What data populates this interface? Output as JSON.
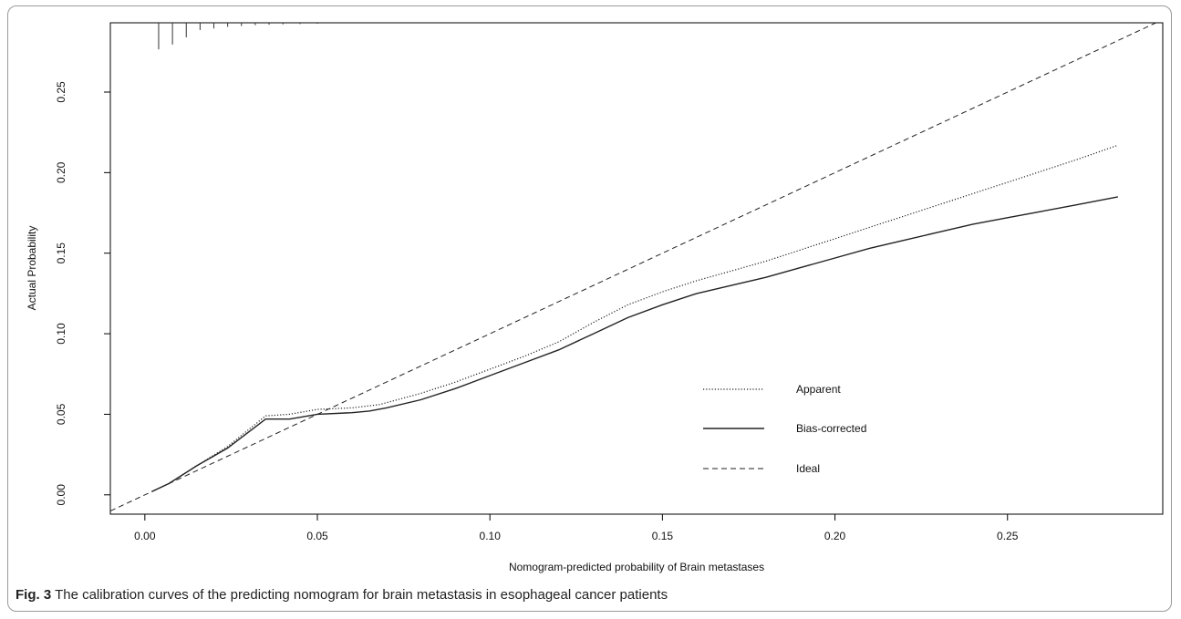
{
  "caption": {
    "label": "Fig. 3",
    "text": " The calibration curves of the predicting nomogram for brain metastasis in esophageal cancer patients"
  },
  "chart_data": {
    "type": "line",
    "title": "",
    "xlabel": "Nomogram-predicted probability of Brain metastases",
    "ylabel": "Actual Probability",
    "xlim": [
      -0.01,
      0.295
    ],
    "ylim": [
      -0.012,
      0.293
    ],
    "xticks": [
      0.0,
      0.05,
      0.1,
      0.15,
      0.2,
      0.25
    ],
    "xtick_labels": [
      "0.00",
      "0.05",
      "0.10",
      "0.15",
      "0.20",
      "0.25"
    ],
    "yticks": [
      0.0,
      0.05,
      0.1,
      0.15,
      0.2,
      0.25
    ],
    "ytick_labels": [
      "0.00",
      "0.05",
      "0.10",
      "0.15",
      "0.20",
      "0.25"
    ],
    "grid": false,
    "legend_position": "bottom-right",
    "series": [
      {
        "name": "Apparent",
        "style": "dotted",
        "x": [
          0.002,
          0.007,
          0.015,
          0.024,
          0.035,
          0.042,
          0.05,
          0.06,
          0.068,
          0.08,
          0.09,
          0.1,
          0.11,
          0.12,
          0.13,
          0.14,
          0.15,
          0.16,
          0.17,
          0.18,
          0.19,
          0.2,
          0.21,
          0.22,
          0.23,
          0.24,
          0.25,
          0.26,
          0.27,
          0.282
        ],
        "y": [
          0.002,
          0.007,
          0.018,
          0.03,
          0.049,
          0.05,
          0.053,
          0.054,
          0.056,
          0.063,
          0.07,
          0.078,
          0.086,
          0.095,
          0.107,
          0.118,
          0.126,
          0.133,
          0.139,
          0.145,
          0.152,
          0.159,
          0.166,
          0.173,
          0.18,
          0.187,
          0.194,
          0.201,
          0.208,
          0.217
        ]
      },
      {
        "name": "Bias-corrected",
        "style": "solid",
        "x": [
          0.002,
          0.007,
          0.015,
          0.024,
          0.035,
          0.042,
          0.05,
          0.06,
          0.065,
          0.07,
          0.08,
          0.09,
          0.1,
          0.11,
          0.12,
          0.13,
          0.14,
          0.15,
          0.16,
          0.17,
          0.18,
          0.19,
          0.2,
          0.21,
          0.22,
          0.23,
          0.24,
          0.25,
          0.26,
          0.27,
          0.282
        ],
        "y": [
          0.002,
          0.007,
          0.018,
          0.029,
          0.047,
          0.047,
          0.05,
          0.051,
          0.052,
          0.054,
          0.059,
          0.066,
          0.074,
          0.082,
          0.09,
          0.1,
          0.11,
          0.118,
          0.125,
          0.13,
          0.135,
          0.141,
          0.147,
          0.153,
          0.158,
          0.163,
          0.168,
          0.172,
          0.176,
          0.18,
          0.185
        ]
      },
      {
        "name": "Ideal",
        "style": "dashed",
        "x": [
          -0.01,
          0.295
        ],
        "y": [
          -0.01,
          0.295
        ]
      }
    ],
    "rug": {
      "x": [
        0.004,
        0.008,
        0.012,
        0.016,
        0.02,
        0.024,
        0.028,
        0.032,
        0.036,
        0.04,
        0.045,
        0.05
      ],
      "length": [
        0.0165,
        0.0135,
        0.009,
        0.0045,
        0.0035,
        0.0025,
        0.002,
        0.0015,
        0.0012,
        0.001,
        0.0008,
        0.0006
      ]
    }
  }
}
